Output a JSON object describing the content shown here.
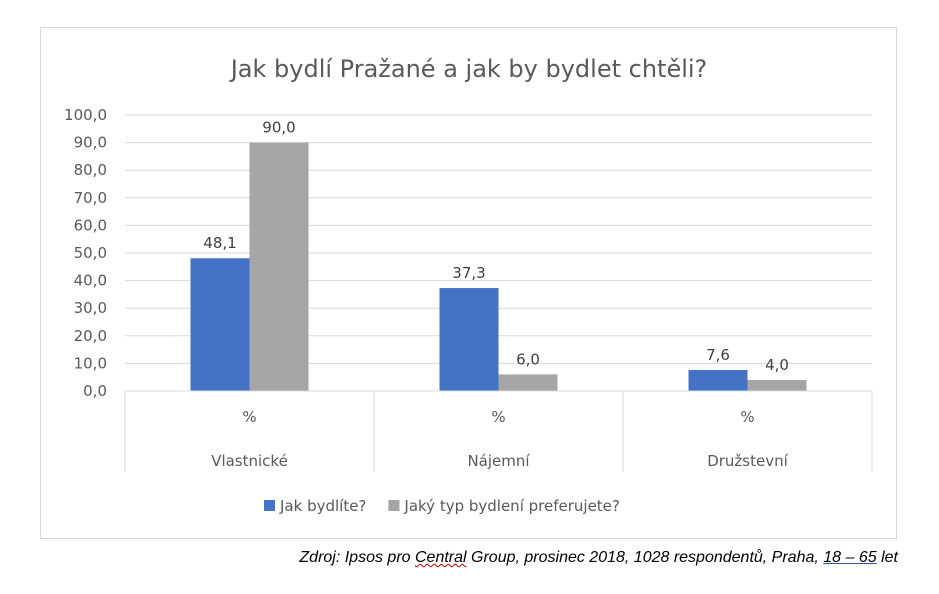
{
  "chart_data": {
    "type": "bar",
    "title": "Jak bydlí Pražané a jak by bydlet chtěli?",
    "xlabel": "",
    "ylabel": "",
    "ylim": [
      0,
      100
    ],
    "yticks": [
      "0,0",
      "10,0",
      "20,0",
      "30,0",
      "40,0",
      "50,0",
      "60,0",
      "70,0",
      "80,0",
      "90,0",
      "100,0"
    ],
    "categories": [
      "Vlastnické",
      "Nájemní",
      "Družstevní"
    ],
    "subcategory_label": "%",
    "series": [
      {
        "name": "Jak bydlíte?",
        "color": "#4472c4",
        "values": [
          48.1,
          37.3,
          7.6
        ],
        "labels": [
          "48,1",
          "37,3",
          "7,6"
        ]
      },
      {
        "name": "Jaký typ bydlení preferujete?",
        "color": "#a5a5a5",
        "values": [
          90.0,
          6.0,
          4.0
        ],
        "labels": [
          "90,0",
          "6,0",
          "4,0"
        ]
      }
    ],
    "grid": true,
    "legend_position": "bottom"
  },
  "source": {
    "prefix": "Zdroj: Ipsos pro ",
    "central": "Central",
    "middle": " Group, prosinec 2018, 1028 respondentů, Praha, ",
    "age_range": "18 – 65",
    "suffix": " let"
  }
}
